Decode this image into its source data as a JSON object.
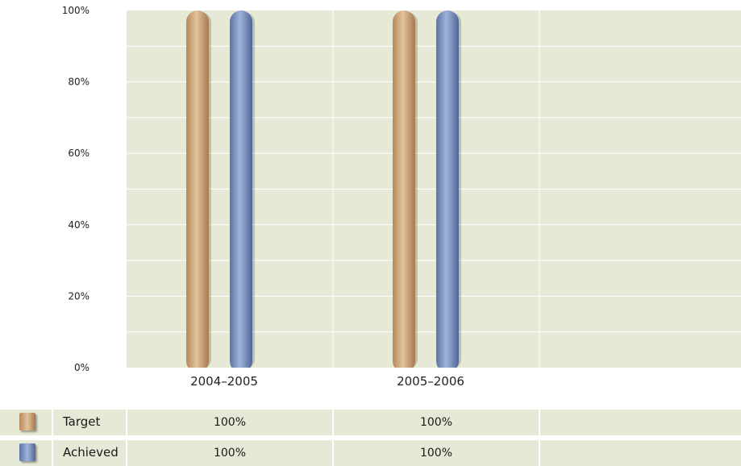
{
  "chart_data": {
    "type": "bar",
    "categories": [
      "2004–2005",
      "2005–2006"
    ],
    "series": [
      {
        "name": "Target",
        "values": [
          100,
          100
        ],
        "color": "#d3aa7c"
      },
      {
        "name": "Achieved",
        "values": [
          100,
          100
        ],
        "color": "#7d95c4"
      }
    ],
    "ylim": [
      0,
      100
    ],
    "yticks": [
      "0%",
      "20%",
      "40%",
      "60%",
      "80%",
      "100%"
    ],
    "grid": true,
    "plot_background": "#e6e9d6"
  },
  "table": {
    "rows": [
      {
        "label": "Target",
        "values": [
          "100%",
          "100%",
          ""
        ]
      },
      {
        "label": "Achieved",
        "values": [
          "100%",
          "100%",
          ""
        ]
      }
    ]
  }
}
